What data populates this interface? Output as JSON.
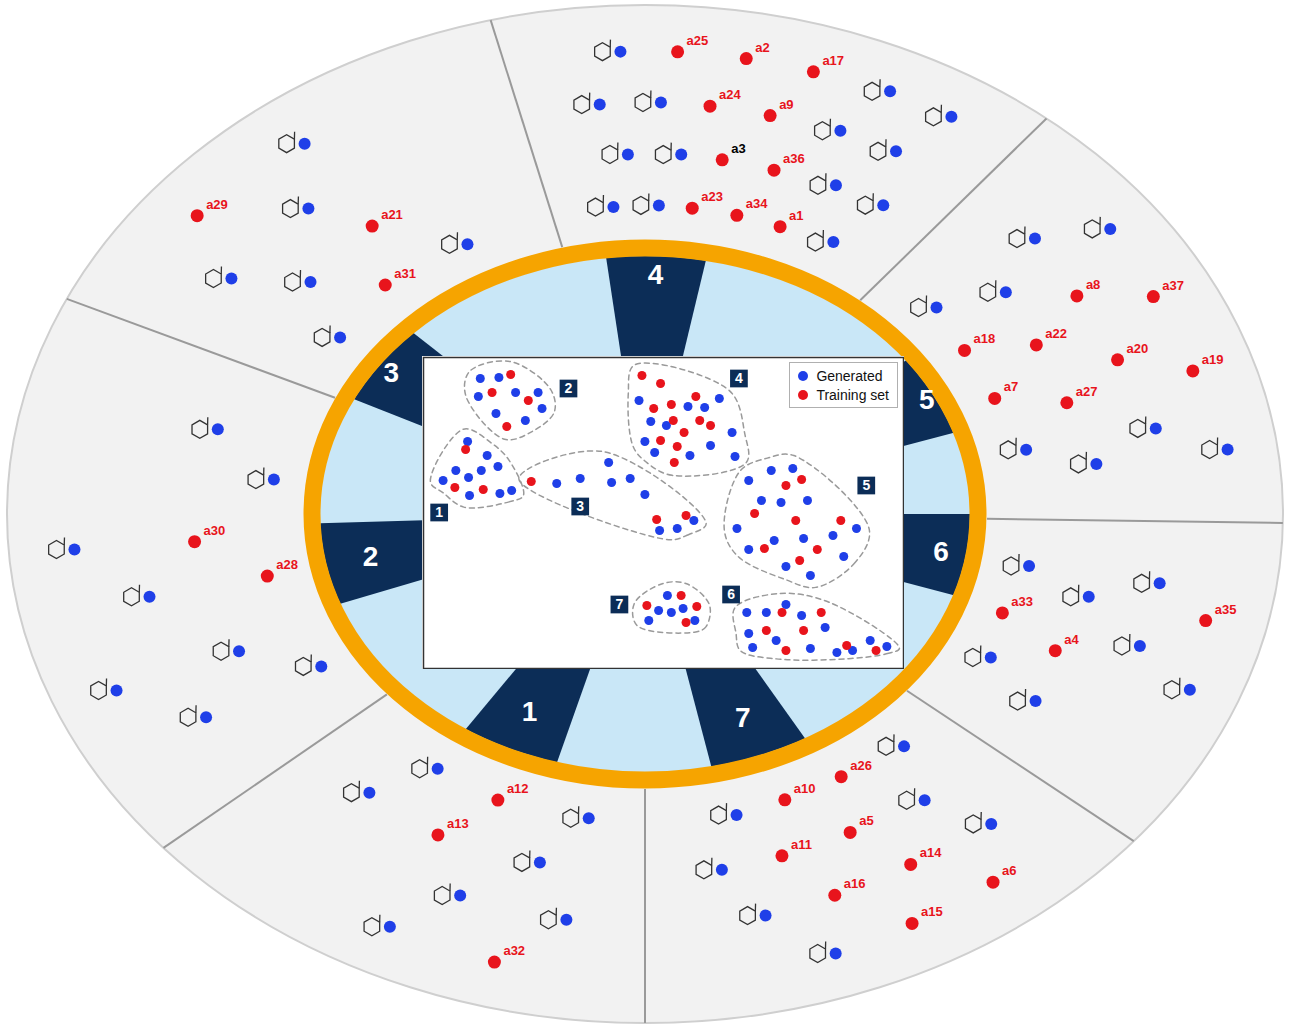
{
  "chart_data": {
    "type": "scatter",
    "xlim": [
      0,
      490
    ],
    "ylim": [
      0,
      311
    ],
    "tick_labels": false,
    "legend": "top-right",
    "series": [
      {
        "name": "Generated",
        "color": "#1f3fe8"
      },
      {
        "name": "Training set",
        "color": "#e8141c"
      }
    ],
    "clusters": [
      {
        "label": "1",
        "x": 16,
        "y": 156,
        "Generated": [
          [
            45,
            227
          ],
          [
            20,
            188
          ],
          [
            33,
            198
          ],
          [
            46,
            191
          ],
          [
            59,
            198
          ],
          [
            76,
            202
          ],
          [
            78,
            175
          ],
          [
            90,
            178
          ],
          [
            47,
            173
          ],
          [
            65,
            213
          ]
        ],
        "Training set": [
          [
            43,
            219
          ],
          [
            61,
            179
          ],
          [
            32,
            181
          ]
        ]
      },
      {
        "label": "2",
        "x": 148,
        "y": 280,
        "Generated": [
          [
            58,
            290
          ],
          [
            77,
            291
          ],
          [
            56,
            272
          ],
          [
            94,
            276
          ],
          [
            117,
            276
          ],
          [
            121,
            260
          ],
          [
            104,
            248
          ],
          [
            74,
            255
          ]
        ],
        "Training set": [
          [
            89,
            294
          ],
          [
            70,
            276
          ],
          [
            107,
            268
          ],
          [
            85,
            242
          ]
        ]
      },
      {
        "label": "3",
        "x": 160,
        "y": 162,
        "Generated": [
          [
            136,
            185
          ],
          [
            160,
            190
          ],
          [
            189,
            206
          ],
          [
            192,
            186
          ],
          [
            211,
            190
          ],
          [
            226,
            174
          ],
          [
            241,
            138
          ],
          [
            259,
            140
          ],
          [
            276,
            148
          ]
        ],
        "Training set": [
          [
            110,
            187
          ],
          [
            238,
            149
          ],
          [
            268,
            153
          ]
        ]
      },
      {
        "label": "4",
        "x": 322,
        "y": 290,
        "Generated": [
          [
            220,
            268
          ],
          [
            232,
            247
          ],
          [
            248,
            243
          ],
          [
            270,
            262
          ],
          [
            287,
            261
          ],
          [
            293,
            223
          ],
          [
            315,
            236
          ],
          [
            318,
            212
          ],
          [
            236,
            216
          ],
          [
            272,
            213
          ],
          [
            226,
            227
          ],
          [
            302,
            270
          ]
        ],
        "Training set": [
          [
            223,
            293
          ],
          [
            242,
            285
          ],
          [
            235,
            260
          ],
          [
            253,
            264
          ],
          [
            255,
            248
          ],
          [
            266,
            236
          ],
          [
            259,
            222
          ],
          [
            242,
            228
          ],
          [
            278,
            272
          ],
          [
            282,
            248
          ],
          [
            293,
            243
          ],
          [
            256,
            206
          ]
        ]
      },
      {
        "label": "5",
        "x": 452,
        "y": 183,
        "Generated": [
          [
            332,
            188
          ],
          [
            355,
            198
          ],
          [
            377,
            200
          ],
          [
            345,
            168
          ],
          [
            365,
            166
          ],
          [
            392,
            168
          ],
          [
            320,
            140
          ],
          [
            332,
            119
          ],
          [
            358,
            128
          ],
          [
            388,
            130
          ],
          [
            418,
            133
          ],
          [
            429,
            112
          ],
          [
            442,
            140
          ],
          [
            395,
            93
          ],
          [
            370,
            102
          ]
        ],
        "Training set": [
          [
            338,
            155
          ],
          [
            370,
            183
          ],
          [
            386,
            189
          ],
          [
            380,
            148
          ],
          [
            348,
            120
          ],
          [
            402,
            119
          ],
          [
            426,
            148
          ],
          [
            384,
            108
          ]
        ]
      },
      {
        "label": "6",
        "x": 314,
        "y": 74,
        "Generated": [
          [
            330,
            56
          ],
          [
            350,
            56
          ],
          [
            370,
            64
          ],
          [
            386,
            53
          ],
          [
            332,
            35
          ],
          [
            336,
            21
          ],
          [
            360,
            28
          ],
          [
            395,
            20
          ],
          [
            410,
            41
          ],
          [
            438,
            18
          ],
          [
            456,
            28
          ],
          [
            473,
            22
          ],
          [
            422,
            16
          ]
        ],
        "Training set": [
          [
            366,
            56
          ],
          [
            350,
            38
          ],
          [
            370,
            18
          ],
          [
            388,
            38
          ],
          [
            432,
            23
          ],
          [
            462,
            18
          ],
          [
            406,
            56
          ]
        ]
      },
      {
        "label": "7",
        "x": 200,
        "y": 64,
        "Generated": [
          [
            249,
            73
          ],
          [
            240,
            58
          ],
          [
            253,
            56
          ],
          [
            265,
            60
          ],
          [
            277,
            48
          ],
          [
            230,
            48
          ]
        ],
        "Training set": [
          [
            228,
            63
          ],
          [
            263,
            73
          ],
          [
            279,
            62
          ],
          [
            268,
            46
          ]
        ]
      }
    ]
  },
  "sectors": [
    {
      "number": "1",
      "training_set": [
        "a32",
        "a12",
        "a13"
      ],
      "generated": 7
    },
    {
      "number": "2",
      "training_set": [
        "a28",
        "a30"
      ],
      "generated": 8
    },
    {
      "number": "3",
      "training_set": [
        "a29",
        "a31",
        "a21"
      ],
      "generated": 6
    },
    {
      "number": "4",
      "training_set": [
        "a25",
        "a23",
        {
          "label": "a3",
          "color": "#000000"
        },
        "a24",
        "a2",
        "a34",
        "a36",
        "a9",
        "a17",
        "a1"
      ],
      "generated": 14
    },
    {
      "number": "5",
      "training_set": [
        "a18",
        "a22",
        "a8",
        "a37",
        "a7",
        "a27",
        "a20",
        "a19"
      ],
      "generated": 8
    },
    {
      "number": "6",
      "training_set": [
        "a35",
        "a33",
        "a4"
      ],
      "generated": 7
    },
    {
      "number": "7",
      "training_set": [
        "a6",
        "a26",
        "a5",
        "a14",
        "a15",
        "a10",
        "a11",
        "a16"
      ],
      "generated": 7
    }
  ]
}
